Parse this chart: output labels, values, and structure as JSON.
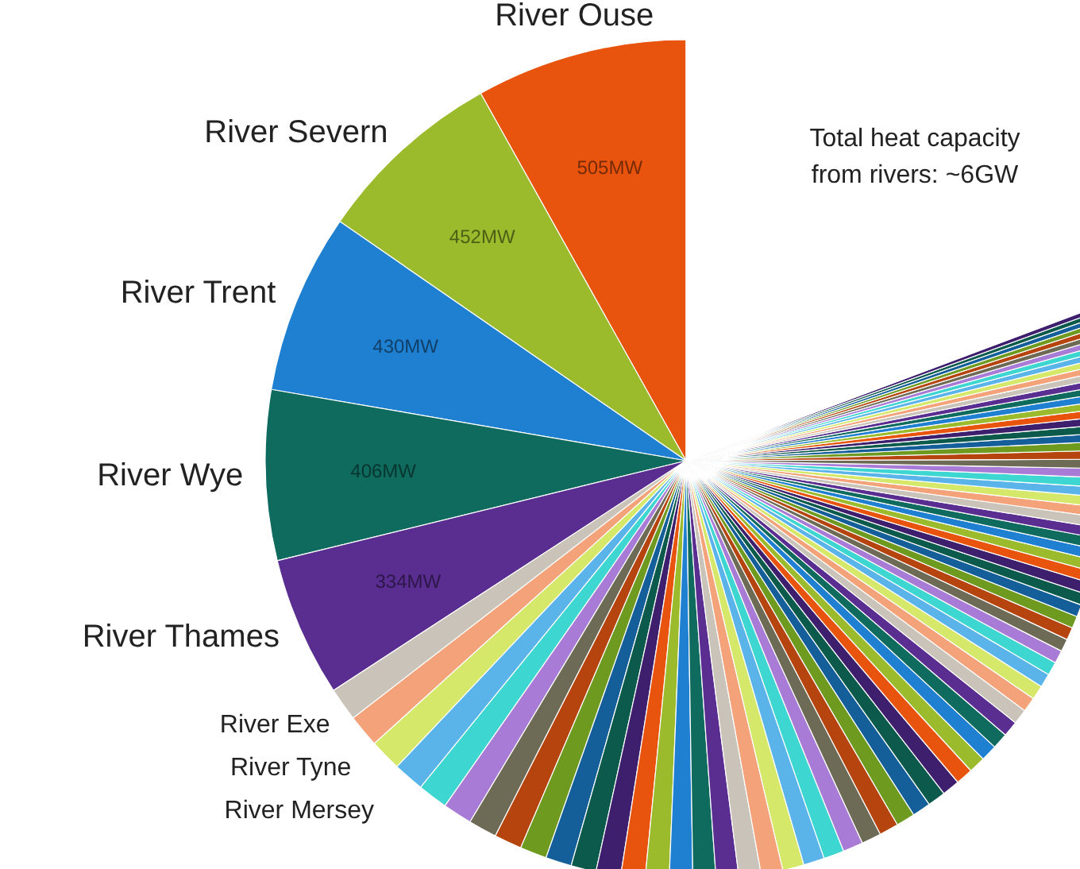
{
  "chart_data": {
    "type": "pie",
    "categories": [
      "River Ouse",
      "River Severn",
      "River Trent",
      "River Wye",
      "River Thames",
      "River Exe",
      "River Tyne",
      "River Mersey",
      null,
      null,
      null,
      null,
      null,
      null,
      null,
      null,
      null,
      null,
      null,
      null,
      null,
      null,
      null,
      null,
      null,
      null,
      null,
      null,
      null,
      null,
      null,
      null,
      null,
      null,
      null,
      null,
      null,
      null,
      null,
      null,
      null,
      null,
      null,
      null,
      null,
      null,
      null,
      null,
      null,
      null,
      null,
      null,
      null,
      null,
      null,
      null,
      null,
      null,
      null,
      null,
      null,
      null,
      null,
      null,
      null,
      null,
      null,
      null,
      null,
      null,
      null,
      null,
      null,
      null,
      null,
      null,
      null,
      null,
      null,
      null,
      null,
      null,
      null,
      null,
      null,
      null
    ],
    "values": [
      505,
      452,
      430,
      406,
      334,
      80,
      78,
      76,
      74,
      72,
      70,
      68,
      66,
      64,
      62,
      60,
      59,
      58,
      57,
      56,
      55,
      54,
      53,
      52,
      51,
      50,
      49,
      48,
      47,
      46,
      45,
      44,
      43,
      42,
      41,
      40,
      39,
      38,
      37,
      36,
      35,
      34,
      33,
      32,
      31,
      30,
      30,
      29,
      29,
      28,
      28,
      27,
      27,
      26,
      26,
      25,
      25,
      24,
      24,
      23,
      23,
      22,
      22,
      21,
      21,
      20,
      20,
      19,
      19,
      18,
      18,
      17,
      17,
      16,
      16,
      15,
      15,
      14,
      14,
      13,
      13,
      12,
      12,
      11,
      11,
      1200
    ],
    "value_labels": [
      "505MW",
      "452MW",
      "430MW",
      "406MW",
      "334MW",
      null,
      null,
      null,
      null,
      null,
      null,
      null,
      null,
      null,
      null,
      null,
      null,
      null,
      null,
      null,
      null,
      null,
      null,
      null,
      null,
      null,
      null,
      null,
      null,
      null,
      null,
      null,
      null,
      null,
      null,
      null,
      null,
      null,
      null,
      null,
      null,
      null,
      null,
      null,
      null,
      null,
      null,
      null,
      null,
      null,
      null,
      null,
      null,
      null,
      null,
      null,
      null,
      null,
      null,
      null,
      null,
      null,
      null,
      null,
      null,
      null,
      null,
      null,
      null,
      null,
      null,
      null,
      null,
      null,
      null,
      null,
      null,
      null,
      null,
      null,
      null,
      null,
      null,
      null,
      null,
      null
    ],
    "colors": [
      "#e8540e",
      "#9bbb2c",
      "#1f7fd0",
      "#0f6b5e",
      "#5a2d91",
      "#c9c3b9",
      "#f4a27a",
      "#d5e86a",
      "#5ab4ea",
      "#3dd6d0",
      "#a87bd6",
      "#6d6a55",
      "#b5440e",
      "#6e9a1f",
      "#145f9a",
      "#0b5a4c",
      "#3d1f6e",
      "#e8540e",
      "#9bbb2c",
      "#1f7fd0",
      "#0f6b5e",
      "#5a2d91",
      "#c9c3b9",
      "#f4a27a",
      "#d5e86a",
      "#5ab4ea",
      "#3dd6d0",
      "#a87bd6",
      "#6d6a55",
      "#b5440e",
      "#6e9a1f",
      "#145f9a",
      "#0b5a4c",
      "#3d1f6e",
      "#e8540e",
      "#9bbb2c",
      "#1f7fd0",
      "#0f6b5e",
      "#5a2d91",
      "#c9c3b9",
      "#f4a27a",
      "#d5e86a",
      "#5ab4ea",
      "#3dd6d0",
      "#a87bd6",
      "#6d6a55",
      "#b5440e",
      "#6e9a1f",
      "#145f9a",
      "#0b5a4c",
      "#3d1f6e",
      "#e8540e",
      "#9bbb2c",
      "#1f7fd0",
      "#0f6b5e",
      "#5a2d91",
      "#c9c3b9",
      "#f4a27a",
      "#d5e86a",
      "#5ab4ea",
      "#3dd6d0",
      "#a87bd6",
      "#6d6a55",
      "#b5440e",
      "#6e9a1f",
      "#145f9a",
      "#0b5a4c",
      "#3d1f6e",
      "#e8540e",
      "#9bbb2c",
      "#1f7fd0",
      "#0f6b5e",
      "#5a2d91",
      "#c9c3b9",
      "#f4a27a",
      "#d5e86a",
      "#5ab4ea",
      "#3dd6d0",
      "#a87bd6",
      "#6d6a55",
      "#b5440e",
      "#6e9a1f",
      "#145f9a",
      "#0b5a4c",
      "#3d1f6e",
      "#ffffff"
    ],
    "annotations": [
      "Total heat capacity from rivers: ~6GW"
    ]
  }
}
